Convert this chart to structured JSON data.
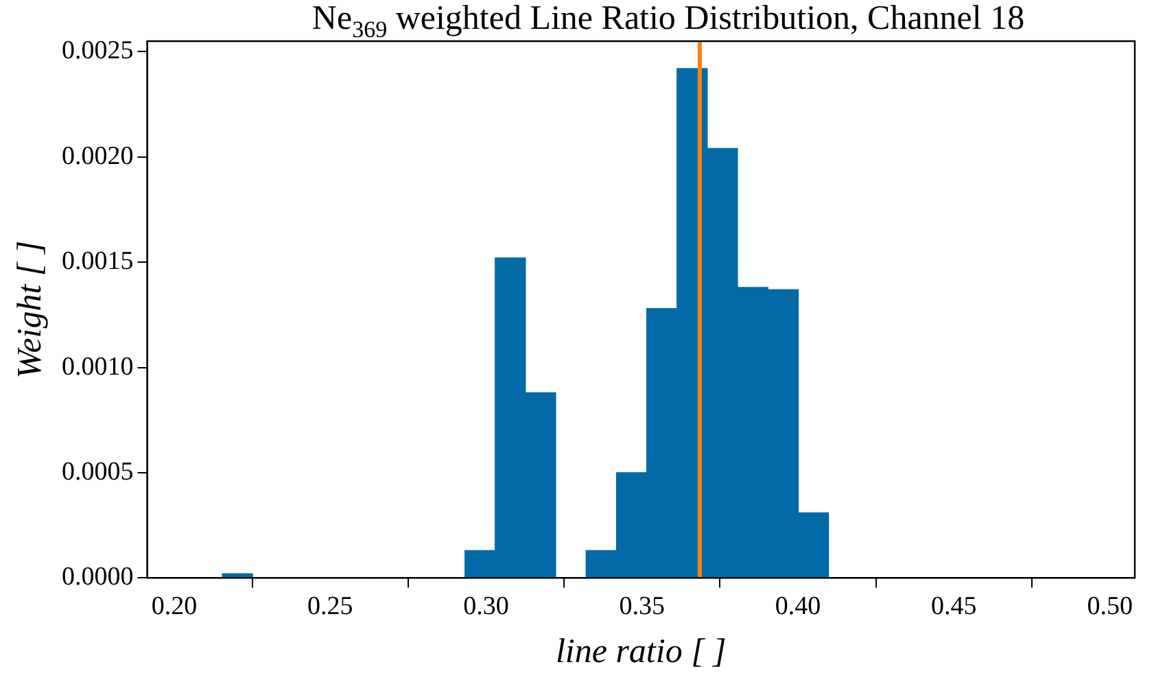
{
  "chart_data": {
    "type": "histogram",
    "title": "Ne$_{369}$ weighted Line Ratio Distribution, Channel 18",
    "xlabel": "line ratio [ ]",
    "ylabel": "Weight [ ]",
    "bins": [
      0.2154,
      0.2251,
      0.2348,
      0.2446,
      0.2543,
      0.264,
      0.2737,
      0.2835,
      0.2932,
      0.3029,
      0.3126,
      0.3223,
      0.332,
      0.3418,
      0.3515,
      0.3612,
      0.3709,
      0.3806,
      0.3904,
      0.4001,
      0.4098
    ],
    "values": [
      2e-05,
      0,
      0,
      0,
      0,
      0,
      0,
      0,
      0.00013,
      0.00152,
      0.00088,
      0,
      0.00013,
      0.0005,
      0.00128,
      0.00242,
      0.00204,
      0.00138,
      0.00137,
      0.00031
    ],
    "color": "#026aa7",
    "xlim": [
      0.1913,
      0.508
    ],
    "xticks": [
      {
        "value": 0.2,
        "label": "0.20"
      },
      {
        "value": 0.25,
        "label": "0.25"
      },
      {
        "value": 0.3,
        "label": "0.30"
      },
      {
        "value": 0.35,
        "label": "0.35"
      },
      {
        "value": 0.4,
        "label": "0.40"
      },
      {
        "value": 0.45,
        "label": "0.45"
      },
      {
        "value": 0.5,
        "label": "0.50"
      }
    ],
    "ylim": [
      0,
      0.00255
    ],
    "yticks": [
      {
        "value": 0,
        "label": "0.0000"
      },
      {
        "value": 0.0005,
        "label": "0.0005"
      },
      {
        "value": 0.001,
        "label": "0.0010"
      },
      {
        "value": 0.0015,
        "label": "0.0015"
      },
      {
        "value": 0.002,
        "label": "0.0020"
      },
      {
        "value": 0.0025,
        "label": "0.0025"
      }
    ],
    "ref_lines": [
      {
        "axis": "x",
        "value": 0.3685,
        "color": "#ff7f0e"
      }
    ],
    "grid": false,
    "legend": false
  }
}
